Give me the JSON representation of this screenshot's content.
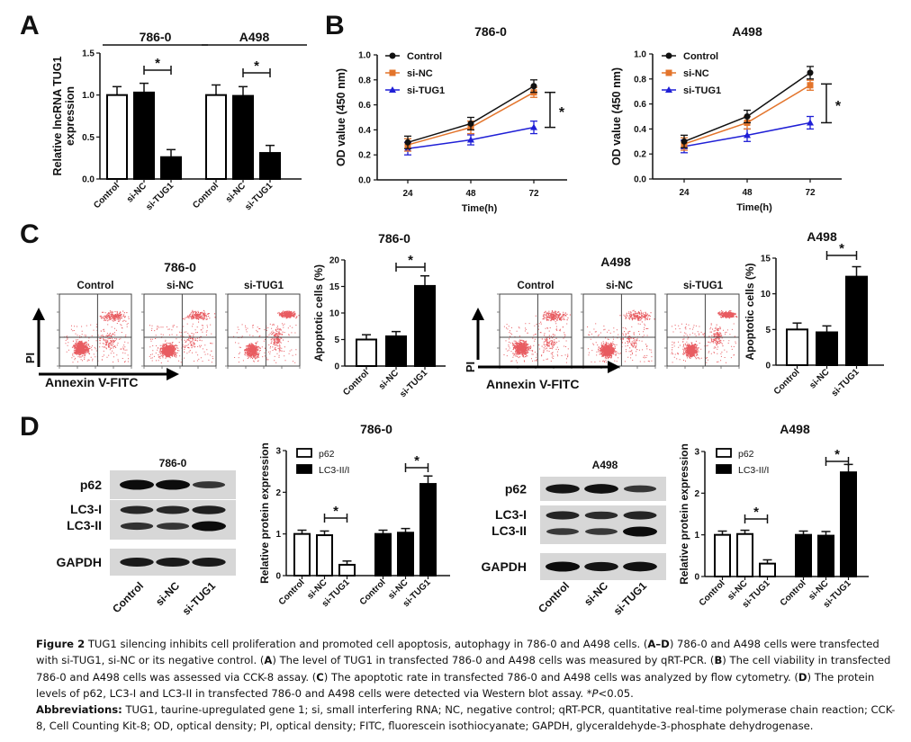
{
  "panel_letters": [
    "A",
    "B",
    "C",
    "D"
  ],
  "chart_data": [
    {
      "id": "A",
      "type": "bar",
      "title": "",
      "group_titles": [
        "786-0",
        "A498"
      ],
      "ylabel": [
        "Relative lncRNA TUG1",
        "expression"
      ],
      "xlabel": "",
      "ylim": [
        0,
        1.5
      ],
      "yticks": [
        "0.0",
        "0.5",
        "1.0",
        "1.5"
      ],
      "ytick_values": [
        0,
        0.5,
        1.0,
        1.5
      ],
      "categories": [
        "Control",
        "si-NC",
        "si-TUG1",
        "Control",
        "si-NC",
        "si-TUG1"
      ],
      "values": [
        1.0,
        1.03,
        0.26,
        1.0,
        0.99,
        0.31
      ],
      "errors": [
        0.1,
        0.11,
        0.09,
        0.12,
        0.11,
        0.09
      ],
      "fills": [
        "white",
        "black",
        "black",
        "white",
        "black",
        "black"
      ],
      "significance": [
        {
          "from": 1,
          "to": 2,
          "label": "*"
        },
        {
          "from": 4,
          "to": 5,
          "label": "*"
        }
      ]
    },
    {
      "id": "B1",
      "type": "line",
      "title": "786-0",
      "xlabel": "Time(h)",
      "ylabel": "OD value (450 nm)",
      "x": [
        "24",
        "48",
        "72"
      ],
      "ylim": [
        0,
        1.0
      ],
      "yticks": [
        "0.0",
        "0.2",
        "0.4",
        "0.6",
        "0.8",
        "1.0"
      ],
      "legend_position": "top-left",
      "series": [
        {
          "name": "Control",
          "color": "#111111",
          "marker": "circle",
          "values": [
            0.3,
            0.45,
            0.75
          ],
          "errors": [
            0.05,
            0.05,
            0.05
          ]
        },
        {
          "name": "si-NC",
          "color": "#e3742b",
          "marker": "square",
          "values": [
            0.28,
            0.42,
            0.7
          ],
          "errors": [
            0.05,
            0.05,
            0.04
          ]
        },
        {
          "name": "si-TUG1",
          "color": "#1f1fd6",
          "marker": "triangle",
          "values": [
            0.25,
            0.32,
            0.42
          ],
          "errors": [
            0.05,
            0.04,
            0.05
          ]
        }
      ],
      "significance": {
        "between": [
          0.7,
          0.42
        ],
        "label": "*"
      }
    },
    {
      "id": "B2",
      "type": "line",
      "title": "A498",
      "xlabel": "Time(h)",
      "ylabel": "OD value (450 nm)",
      "x": [
        "24",
        "48",
        "72"
      ],
      "ylim": [
        0,
        1.0
      ],
      "yticks": [
        "0.0",
        "0.2",
        "0.4",
        "0.6",
        "0.8",
        "1.0"
      ],
      "legend_position": "top-left",
      "series": [
        {
          "name": "Control",
          "color": "#111111",
          "marker": "circle",
          "values": [
            0.3,
            0.5,
            0.85
          ],
          "errors": [
            0.05,
            0.05,
            0.05
          ]
        },
        {
          "name": "si-NC",
          "color": "#e3742b",
          "marker": "square",
          "values": [
            0.28,
            0.45,
            0.75
          ],
          "errors": [
            0.05,
            0.05,
            0.04
          ]
        },
        {
          "name": "si-TUG1",
          "color": "#1f1fd6",
          "marker": "triangle",
          "values": [
            0.26,
            0.35,
            0.45
          ],
          "errors": [
            0.05,
            0.05,
            0.05
          ]
        }
      ],
      "significance": {
        "between": [
          0.76,
          0.45
        ],
        "label": "*"
      }
    },
    {
      "id": "C1",
      "type": "bar",
      "title": "786-0",
      "ylabel": "Apoptotic cells (%)",
      "ylim": [
        0,
        20
      ],
      "yticks": [
        "0",
        "5",
        "10",
        "15",
        "20"
      ],
      "ytick_values": [
        0,
        5,
        10,
        15,
        20
      ],
      "categories": [
        "Control",
        "si-NC",
        "si-TUG1"
      ],
      "values": [
        5.0,
        5.6,
        15.1
      ],
      "errors": [
        0.9,
        0.9,
        1.9
      ],
      "fills": [
        "white",
        "black",
        "black"
      ],
      "significance": [
        {
          "from": 1,
          "to": 2,
          "label": "*"
        }
      ]
    },
    {
      "id": "C2",
      "type": "bar",
      "title": "A498",
      "ylabel": "Apoptotic cells (%)",
      "ylim": [
        0,
        15
      ],
      "yticks": [
        "0",
        "5",
        "10",
        "15"
      ],
      "ytick_values": [
        0,
        5,
        10,
        15
      ],
      "categories": [
        "Control",
        "si-NC",
        "si-TUG1"
      ],
      "values": [
        5.0,
        4.6,
        12.4
      ],
      "errors": [
        0.9,
        0.9,
        1.4
      ],
      "fills": [
        "white",
        "black",
        "black"
      ],
      "significance": [
        {
          "from": 1,
          "to": 2,
          "label": "*"
        }
      ]
    },
    {
      "id": "D1",
      "type": "bar",
      "title": "786-0",
      "ylabel": "Relative protein expression",
      "ylim": [
        0,
        3
      ],
      "yticks": [
        "0",
        "1",
        "2",
        "3"
      ],
      "ytick_values": [
        0,
        1,
        2,
        3
      ],
      "legend": [
        {
          "name": "p62",
          "fill": "white"
        },
        {
          "name": "LC3-II/I",
          "fill": "black"
        }
      ],
      "legend_position": "top-left",
      "categories": [
        "Control",
        "si-NC",
        "si-TUG1",
        "Control",
        "si-NC",
        "si-TUG1"
      ],
      "values": [
        1.0,
        0.97,
        0.26,
        1.0,
        1.03,
        2.2
      ],
      "errors": [
        0.09,
        0.1,
        0.09,
        0.09,
        0.1,
        0.19
      ],
      "fills": [
        "white",
        "white",
        "white",
        "black",
        "black",
        "black"
      ],
      "significance": [
        {
          "from": 1,
          "to": 2,
          "label": "*"
        },
        {
          "from": 4,
          "to": 5,
          "label": "*"
        }
      ]
    },
    {
      "id": "D2",
      "type": "bar",
      "title": "A498",
      "ylabel": "Relative protein expression",
      "ylim": [
        0,
        3
      ],
      "yticks": [
        "0",
        "1",
        "2",
        "3"
      ],
      "ytick_values": [
        0,
        1,
        2,
        3
      ],
      "legend": [
        {
          "name": "p62",
          "fill": "white"
        },
        {
          "name": "LC3-II/I",
          "fill": "black"
        }
      ],
      "legend_position": "top-left",
      "categories": [
        "Control",
        "si-NC",
        "si-TUG1",
        "Control",
        "si-NC",
        "si-TUG1"
      ],
      "values": [
        1.0,
        1.02,
        0.31,
        1.0,
        0.98,
        2.5
      ],
      "errors": [
        0.09,
        0.09,
        0.09,
        0.09,
        0.1,
        0.19
      ],
      "fills": [
        "white",
        "white",
        "white",
        "black",
        "black",
        "black"
      ],
      "significance": [
        {
          "from": 1,
          "to": 2,
          "label": "*"
        },
        {
          "from": 4,
          "to": 5,
          "label": "*"
        }
      ]
    }
  ],
  "flow_cytometry": [
    {
      "title": "786-0",
      "xaxis_label": "Annexin V-FITC",
      "yaxis_label": "PI",
      "plots": [
        "Control",
        "si-NC",
        "si-TUG1"
      ]
    },
    {
      "title": "A498",
      "xaxis_label": "Annexin V-FITC",
      "yaxis_label": "PI",
      "plots": [
        "Control",
        "si-NC",
        "si-TUG1"
      ]
    }
  ],
  "western_blots": [
    {
      "title": "786-0",
      "row_labels": [
        "p62",
        "LC3-I",
        "LC3-II",
        "GAPDH"
      ],
      "lanes": [
        "Control",
        "si-NC",
        "si-TUG1"
      ],
      "band_intensity": {
        "p62": [
          1.0,
          1.0,
          0.55
        ],
        "LC3-I": [
          0.7,
          0.7,
          0.8
        ],
        "LC3-II": [
          0.6,
          0.55,
          1.0
        ],
        "GAPDH": [
          0.85,
          0.85,
          0.85
        ]
      }
    },
    {
      "title": "A498",
      "row_labels": [
        "p62",
        "LC3-I",
        "LC3-II",
        "GAPDH"
      ],
      "lanes": [
        "Control",
        "si-NC",
        "si-TUG1"
      ],
      "band_intensity": {
        "p62": [
          0.9,
          0.95,
          0.55
        ],
        "LC3-I": [
          0.75,
          0.65,
          0.75
        ],
        "LC3-II": [
          0.5,
          0.5,
          1.0
        ],
        "GAPDH": [
          1.0,
          0.9,
          0.95
        ]
      }
    }
  ],
  "caption": {
    "figure_label": "Figure 2",
    "intro": " TUG1 silencing inhibits cell proliferation and promoted cell apoptosis, autophagy in 786-0 and A498 cells. (",
    "ad": "A–D",
    "t1": ") 786-0 and A498 cells were transfected with si-TUG1, si-NC or its negative control. (",
    "a": "A",
    "t2": ") The level of TUG1 in transfected 786-0 and A498 cells was measured by qRT-PCR. (",
    "b": "B",
    "t3": ") The cell viability in transfected 786-0 and A498 cells was assessed via CCK-8 assay. (",
    "c": "C",
    "t4": ") The apoptotic rate in transfected 786-0 and A498 cells was analyzed by flow cytometry. (",
    "d": "D",
    "t5": ") The protein levels of p62, LC3-I and LC3-II in transfected 786-0 and A498 cells were detected via Western blot assay. *",
    "p": "P",
    "t6": "<0.05.",
    "abbr_label": "Abbreviations:",
    "abbr_text": " TUG1, taurine-upregulated gene 1; si, small interfering RNA; NC, negative control; qRT-PCR, quantitative real-time polymerase chain reaction; CCK-8, Cell Counting Kit-8; OD, optical density; PI, optical density; FITC, fluorescein isothiocyanate; GAPDH, glyceraldehyde-3-phosphate dehydrogenase."
  }
}
